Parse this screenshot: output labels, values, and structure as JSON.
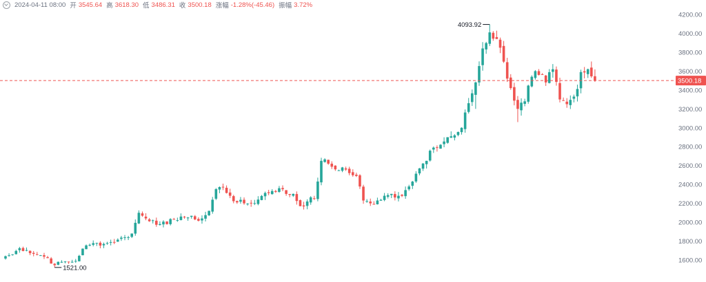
{
  "legend": {
    "timestamp": "2024-04-11 08:00",
    "open_label": "开",
    "open": "3545.64",
    "high_label": "高",
    "high": "3618.30",
    "low_label": "低",
    "low": "3486.31",
    "close_label": "收",
    "close": "3500.18",
    "change_label": "涨幅",
    "change": "-1.28%(-45.46)",
    "amplitude_label": "振幅",
    "amplitude": "3.72%"
  },
  "colors": {
    "up": "#26a69a",
    "down": "#ef5350",
    "grid_text": "#6b7280",
    "price_line": "#ef5350"
  },
  "chart_data": {
    "type": "candlestick",
    "ylim": [
      1500,
      4250
    ],
    "y_ticks": [
      1600,
      1800,
      2000,
      2200,
      2400,
      2600,
      2800,
      3000,
      3200,
      3400,
      3600,
      3800,
      4000,
      4200
    ],
    "grid": false,
    "current_price": 3500.18,
    "current_price_label": "3500.18",
    "annotations": [
      {
        "label": "4093.92",
        "value": 4093.92,
        "index": 138
      },
      {
        "label": "1521.00",
        "value": 1521.0,
        "index": 14
      }
    ],
    "anchors": [
      [
        0,
        1640
      ],
      [
        2,
        1660
      ],
      [
        4,
        1725
      ],
      [
        6,
        1705
      ],
      [
        8,
        1665
      ],
      [
        10,
        1650
      ],
      [
        12,
        1620
      ],
      [
        14,
        1545
      ],
      [
        16,
        1580
      ],
      [
        18,
        1580
      ],
      [
        20,
        1590
      ],
      [
        22,
        1720
      ],
      [
        24,
        1760
      ],
      [
        26,
        1780
      ],
      [
        28,
        1770
      ],
      [
        30,
        1790
      ],
      [
        32,
        1815
      ],
      [
        34,
        1840
      ],
      [
        36,
        1880
      ],
      [
        38,
        2100
      ],
      [
        40,
        2040
      ],
      [
        42,
        2020
      ],
      [
        44,
        1980
      ],
      [
        46,
        1980
      ],
      [
        48,
        2030
      ],
      [
        50,
        2060
      ],
      [
        52,
        2050
      ],
      [
        54,
        2030
      ],
      [
        56,
        2040
      ],
      [
        58,
        2120
      ],
      [
        60,
        2350
      ],
      [
        62,
        2370
      ],
      [
        64,
        2280
      ],
      [
        66,
        2210
      ],
      [
        68,
        2200
      ],
      [
        70,
        2200
      ],
      [
        72,
        2240
      ],
      [
        74,
        2310
      ],
      [
        76,
        2330
      ],
      [
        78,
        2360
      ],
      [
        80,
        2300
      ],
      [
        82,
        2300
      ],
      [
        84,
        2170
      ],
      [
        86,
        2220
      ],
      [
        88,
        2250
      ],
      [
        90,
        2650
      ],
      [
        92,
        2620
      ],
      [
        94,
        2560
      ],
      [
        96,
        2580
      ],
      [
        98,
        2520
      ],
      [
        100,
        2490
      ],
      [
        102,
        2230
      ],
      [
        104,
        2200
      ],
      [
        106,
        2230
      ],
      [
        108,
        2280
      ],
      [
        110,
        2300
      ],
      [
        112,
        2280
      ],
      [
        114,
        2340
      ],
      [
        116,
        2430
      ],
      [
        118,
        2570
      ],
      [
        120,
        2650
      ],
      [
        122,
        2790
      ],
      [
        124,
        2820
      ],
      [
        126,
        2900
      ],
      [
        128,
        2920
      ],
      [
        130,
        3000
      ],
      [
        132,
        3260
      ],
      [
        134,
        3480
      ],
      [
        136,
        3840
      ],
      [
        138,
        4010
      ],
      [
        140,
        3940
      ],
      [
        142,
        3700
      ],
      [
        144,
        3420
      ],
      [
        146,
        3200
      ],
      [
        148,
        3280
      ],
      [
        150,
        3540
      ],
      [
        152,
        3560
      ],
      [
        154,
        3480
      ],
      [
        156,
        3620
      ],
      [
        158,
        3300
      ],
      [
        160,
        3250
      ],
      [
        162,
        3330
      ],
      [
        164,
        3590
      ],
      [
        166,
        3620
      ],
      [
        168,
        3500
      ]
    ],
    "last_candle": {
      "open": 3545.64,
      "high": 3618.3,
      "low": 3486.31,
      "close": 3500.18
    }
  }
}
